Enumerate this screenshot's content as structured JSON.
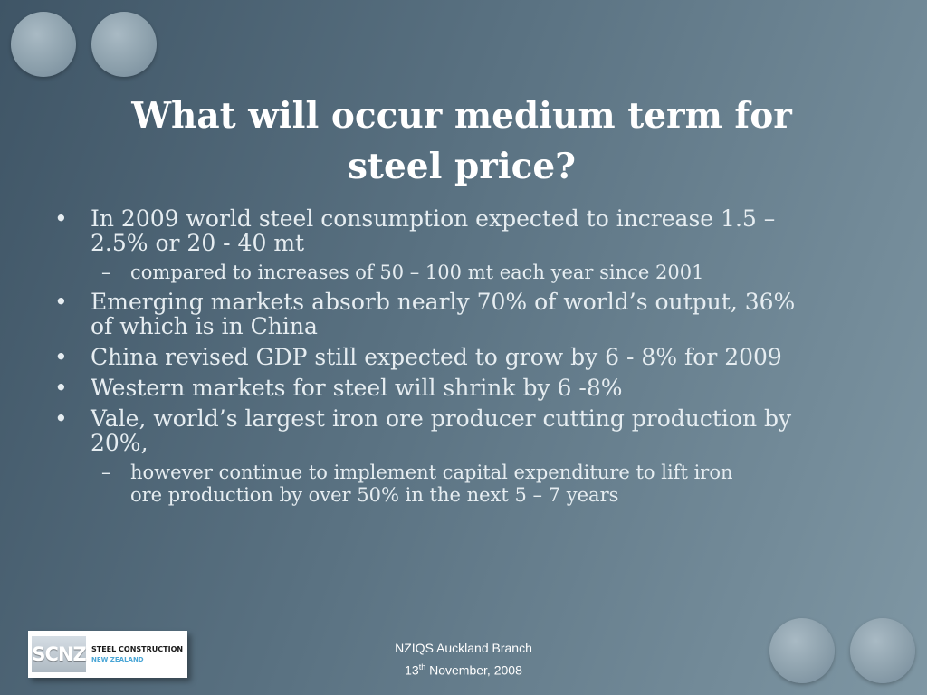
{
  "slide": {
    "title_line1": "What will occur medium term for",
    "title_line2": "steel price?",
    "bullets": [
      {
        "marker": "•",
        "text_line1": "In 2009 world steel consumption expected to increase 1.5 –",
        "text_line2": "2.5% or 20 - 40 mt"
      },
      {
        "marker": "–",
        "text": "compared to increases of 50 – 100 mt each year since 2001"
      },
      {
        "marker": "•",
        "text_line1": "Emerging markets absorb nearly 70% of world’s output, 36%",
        "text_line2": "of which is in China"
      },
      {
        "marker": "•",
        "text": "China revised GDP still expected to grow by 6 - 8% for 2009"
      },
      {
        "marker": "•",
        "text": "Western markets for steel will shrink by 6 -8%"
      },
      {
        "marker": "•",
        "text_line1": "Vale, world’s largest iron ore producer cutting production by",
        "text_line2": "20%,"
      },
      {
        "marker": "–",
        "text_line1": "however continue to implement capital expenditure to lift iron",
        "text_line2": "ore production by over 50% in the next 5 – 7 years"
      }
    ]
  },
  "logo": {
    "mark": "SCNZ",
    "line1": "STEEL CONSTRUCTION",
    "line2": "NEW ZEALAND",
    "accent_color": "#4aa6d6"
  },
  "footer": {
    "line1": "NZIQS Auckland Branch",
    "day": "13",
    "day_suffix": "th",
    "date_rest": " November, 2008"
  },
  "colors": {
    "background_left": "#3f5566",
    "background_right": "#7f97a4",
    "title": "#ffffff",
    "body_text": "#e6edf1"
  }
}
